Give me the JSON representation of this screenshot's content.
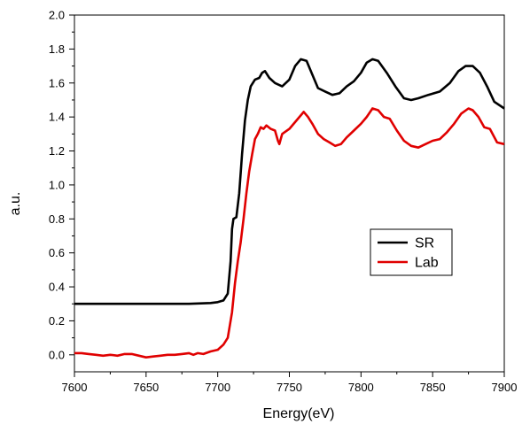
{
  "chart_data": {
    "type": "line",
    "xlabel": "Energy(eV)",
    "ylabel": "a.u.",
    "xlim": [
      7600,
      7900
    ],
    "ylim": [
      -0.1,
      2.0
    ],
    "xticks": [
      7600,
      7650,
      7700,
      7750,
      7800,
      7850,
      7900
    ],
    "xtick_labels": [
      "7600",
      "7650",
      "7700",
      "7750",
      "7800",
      "7850",
      "7900"
    ],
    "yticks": [
      0.0,
      0.2,
      0.4,
      0.6,
      0.8,
      1.0,
      1.2,
      1.4,
      1.6,
      1.8,
      2.0
    ],
    "ytick_labels": [
      "0.0",
      "0.2",
      "0.4",
      "0.6",
      "0.8",
      "1.0",
      "1.2",
      "1.4",
      "1.6",
      "1.8",
      "2.0"
    ],
    "grid": false,
    "legend": {
      "position": "right-middle",
      "box": true
    },
    "series": [
      {
        "name": "SR",
        "color": "#000000",
        "points": [
          [
            7600,
            0.3
          ],
          [
            7650,
            0.3
          ],
          [
            7680,
            0.3
          ],
          [
            7695,
            0.305
          ],
          [
            7700,
            0.31
          ],
          [
            7704,
            0.32
          ],
          [
            7707,
            0.36
          ],
          [
            7709,
            0.55
          ],
          [
            7710,
            0.74
          ],
          [
            7711,
            0.8
          ],
          [
            7713,
            0.81
          ],
          [
            7715,
            0.95
          ],
          [
            7717,
            1.18
          ],
          [
            7719,
            1.38
          ],
          [
            7721,
            1.5
          ],
          [
            7723,
            1.58
          ],
          [
            7726,
            1.62
          ],
          [
            7729,
            1.63
          ],
          [
            7731,
            1.66
          ],
          [
            7733,
            1.67
          ],
          [
            7736,
            1.63
          ],
          [
            7740,
            1.6
          ],
          [
            7745,
            1.58
          ],
          [
            7750,
            1.62
          ],
          [
            7754,
            1.7
          ],
          [
            7758,
            1.74
          ],
          [
            7762,
            1.73
          ],
          [
            7766,
            1.65
          ],
          [
            7770,
            1.57
          ],
          [
            7775,
            1.55
          ],
          [
            7780,
            1.53
          ],
          [
            7785,
            1.54
          ],
          [
            7790,
            1.58
          ],
          [
            7795,
            1.61
          ],
          [
            7800,
            1.66
          ],
          [
            7804,
            1.72
          ],
          [
            7808,
            1.74
          ],
          [
            7812,
            1.73
          ],
          [
            7818,
            1.66
          ],
          [
            7824,
            1.58
          ],
          [
            7830,
            1.51
          ],
          [
            7835,
            1.5
          ],
          [
            7840,
            1.51
          ],
          [
            7847,
            1.53
          ],
          [
            7855,
            1.55
          ],
          [
            7862,
            1.6
          ],
          [
            7868,
            1.67
          ],
          [
            7873,
            1.7
          ],
          [
            7878,
            1.7
          ],
          [
            7883,
            1.66
          ],
          [
            7888,
            1.58
          ],
          [
            7893,
            1.49
          ],
          [
            7900,
            1.45
          ]
        ]
      },
      {
        "name": "Lab",
        "color": "#e00000",
        "points": [
          [
            7600,
            0.01
          ],
          [
            7605,
            0.01
          ],
          [
            7610,
            0.005
          ],
          [
            7615,
            0.0
          ],
          [
            7620,
            -0.005
          ],
          [
            7625,
            0.0
          ],
          [
            7630,
            -0.005
          ],
          [
            7635,
            0.005
          ],
          [
            7640,
            0.005
          ],
          [
            7645,
            -0.005
          ],
          [
            7650,
            -0.015
          ],
          [
            7655,
            -0.01
          ],
          [
            7660,
            -0.005
          ],
          [
            7665,
            0.0
          ],
          [
            7670,
            0.0
          ],
          [
            7675,
            0.005
          ],
          [
            7680,
            0.01
          ],
          [
            7683,
            0.0
          ],
          [
            7686,
            0.01
          ],
          [
            7690,
            0.005
          ],
          [
            7695,
            0.02
          ],
          [
            7700,
            0.03
          ],
          [
            7704,
            0.06
          ],
          [
            7707,
            0.1
          ],
          [
            7710,
            0.25
          ],
          [
            7712,
            0.42
          ],
          [
            7714,
            0.55
          ],
          [
            7716,
            0.66
          ],
          [
            7718,
            0.8
          ],
          [
            7720,
            0.95
          ],
          [
            7722,
            1.08
          ],
          [
            7724,
            1.18
          ],
          [
            7726,
            1.27
          ],
          [
            7728,
            1.3
          ],
          [
            7730,
            1.34
          ],
          [
            7732,
            1.33
          ],
          [
            7734,
            1.35
          ],
          [
            7737,
            1.33
          ],
          [
            7740,
            1.32
          ],
          [
            7742,
            1.26
          ],
          [
            7743,
            1.24
          ],
          [
            7745,
            1.3
          ],
          [
            7750,
            1.33
          ],
          [
            7755,
            1.38
          ],
          [
            7760,
            1.43
          ],
          [
            7763,
            1.4
          ],
          [
            7766,
            1.36
          ],
          [
            7770,
            1.3
          ],
          [
            7774,
            1.27
          ],
          [
            7778,
            1.25
          ],
          [
            7782,
            1.23
          ],
          [
            7786,
            1.24
          ],
          [
            7790,
            1.28
          ],
          [
            7795,
            1.32
          ],
          [
            7800,
            1.36
          ],
          [
            7804,
            1.4
          ],
          [
            7808,
            1.45
          ],
          [
            7812,
            1.44
          ],
          [
            7816,
            1.4
          ],
          [
            7820,
            1.39
          ],
          [
            7825,
            1.32
          ],
          [
            7830,
            1.26
          ],
          [
            7835,
            1.23
          ],
          [
            7840,
            1.22
          ],
          [
            7845,
            1.24
          ],
          [
            7850,
            1.26
          ],
          [
            7855,
            1.27
          ],
          [
            7860,
            1.31
          ],
          [
            7865,
            1.36
          ],
          [
            7870,
            1.42
          ],
          [
            7875,
            1.45
          ],
          [
            7878,
            1.44
          ],
          [
            7882,
            1.4
          ],
          [
            7886,
            1.34
          ],
          [
            7890,
            1.33
          ],
          [
            7895,
            1.25
          ],
          [
            7900,
            1.24
          ]
        ]
      }
    ]
  }
}
